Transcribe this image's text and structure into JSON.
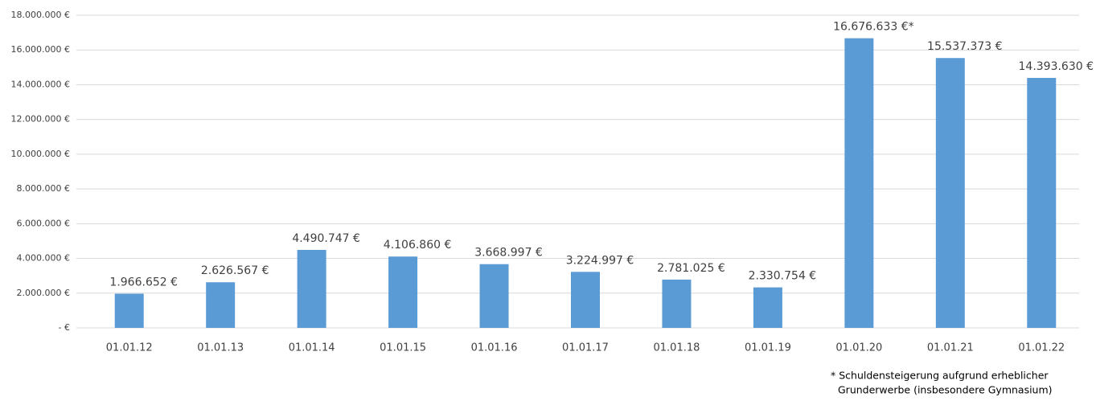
{
  "chart_data": {
    "type": "bar",
    "categories": [
      "01.01.12",
      "01.01.13",
      "01.01.14",
      "01.01.15",
      "01.01.16",
      "01.01.17",
      "01.01.18",
      "01.01.19",
      "01.01.20",
      "01.01.21",
      "01.01.22"
    ],
    "values": [
      1966652,
      2626567,
      4490747,
      4106860,
      3668997,
      3224997,
      2781025,
      2330754,
      16676633,
      15537373,
      14393630
    ],
    "value_labels": [
      "1.966.652 €",
      "2.626.567 €",
      "4.490.747 €",
      "4.106.860 €",
      "3.668.997 €",
      "3.224.997 €",
      "2.781.025 €",
      "2.330.754 €",
      "16.676.633 €*",
      "15.537.373 €",
      "14.393.630 €"
    ],
    "color": "#5b9bd5",
    "ylim": [
      0,
      18000000
    ],
    "yticks": [
      {
        "value": 0,
        "label": "- €"
      },
      {
        "value": 2000000,
        "label": "2.000.000 €"
      },
      {
        "value": 4000000,
        "label": "4.000.000 €"
      },
      {
        "value": 6000000,
        "label": "6.000.000 €"
      },
      {
        "value": 8000000,
        "label": "8.000.000 €"
      },
      {
        "value": 10000000,
        "label": "10.000.000 €"
      },
      {
        "value": 12000000,
        "label": "12.000.000 €"
      },
      {
        "value": 14000000,
        "label": "14.000.000 €"
      },
      {
        "value": 16000000,
        "label": "16.000.000 €"
      },
      {
        "value": 18000000,
        "label": "18.000.000 €"
      }
    ],
    "grid": true,
    "annotation": [
      "* Schuldensteigerung aufgrund erheblicher",
      "Grunderwerbe (insbesondere Gymnasium)"
    ]
  }
}
